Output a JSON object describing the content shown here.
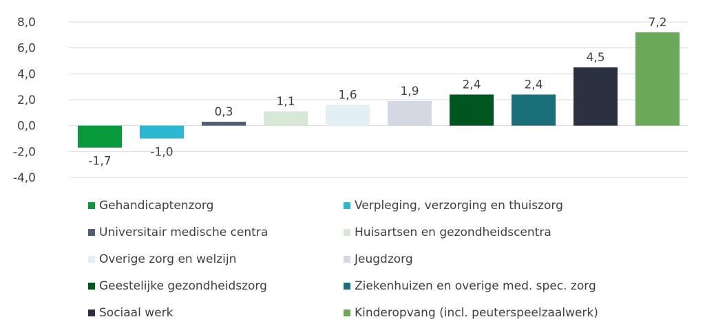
{
  "chart_data": {
    "type": "bar",
    "title": "",
    "xlabel": "",
    "ylabel": "",
    "ylim": [
      -4.0,
      8.0
    ],
    "yticks": [
      "8,0",
      "6,0",
      "4,0",
      "2,0",
      "0,0",
      "-2,0",
      "-4,0"
    ],
    "yticks_values": [
      8,
      6,
      4,
      2,
      0,
      -2,
      -4
    ],
    "grid": true,
    "legend_position": "bottom",
    "categories": [
      "Gehandicaptenzorg",
      "Verpleging, verzorging en thuiszorg",
      "Universitair medische centra",
      "Huisartsen en gezondheidscentra",
      "Overige zorg en welzijn",
      "Jeugdzorg",
      "Geestelijke gezondheidszorg",
      "Ziekenhuizen en overige med. spec. zorg",
      "Sociaal werk",
      "Kinderopvang (incl. peuterspeelzaalwerk)"
    ],
    "values": [
      -1.7,
      -1.0,
      0.3,
      1.1,
      1.6,
      1.9,
      2.4,
      2.4,
      4.5,
      7.2
    ],
    "value_labels": [
      "-1,7",
      "-1,0",
      "0,3",
      "1,1",
      "1,6",
      "1,9",
      "2,4",
      "2,4",
      "4,5",
      "7,2"
    ],
    "colors": [
      "#0a9a3e",
      "#2bb8d0",
      "#4f5f78",
      "#d6e8d6",
      "#e2eff4",
      "#d5d8e2",
      "#00561f",
      "#1b6f7a",
      "#2c3142",
      "#6aa85a"
    ]
  }
}
